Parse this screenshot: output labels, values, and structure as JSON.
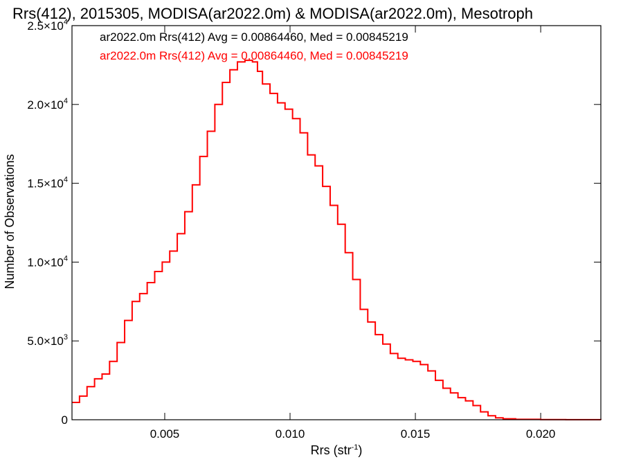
{
  "chart_data": {
    "type": "line",
    "title": "Rrs(412), 2015305, MODISA(ar2022.0m) & MODISA(ar2022.0m), Mesotroph",
    "xlabel": "Rrs (str",
    "xlabel_sup": "-1",
    "xlabel_tail": ")",
    "ylabel": "Number of Observations",
    "xlim": [
      0.0013,
      0.0224
    ],
    "ylim": [
      0,
      25000
    ],
    "x_ticks": [
      {
        "value": 0.005,
        "label": "0.005"
      },
      {
        "value": 0.01,
        "label": "0.010"
      },
      {
        "value": 0.015,
        "label": "0.015"
      },
      {
        "value": 0.02,
        "label": "0.020"
      }
    ],
    "y_ticks": [
      {
        "value": 0,
        "mant": "0",
        "exp": ""
      },
      {
        "value": 5000,
        "mant": "5.0×10",
        "exp": "3"
      },
      {
        "value": 10000,
        "mant": "1.0×10",
        "exp": "4"
      },
      {
        "value": 15000,
        "mant": "1.5×10",
        "exp": "4"
      },
      {
        "value": 20000,
        "mant": "2.0×10",
        "exp": "4"
      },
      {
        "value": 25000,
        "mant": "2.5×10",
        "exp": "4"
      }
    ],
    "grid": false,
    "legend_placement": "top-left",
    "annotations": [
      {
        "text": "ar2022.0m Rrs(412) Avg = 0.00864460, Med = 0.00845219",
        "color": "#000000"
      },
      {
        "text": "ar2022.0m Rrs(412) Avg = 0.00864460, Med = 0.00845219",
        "color": "#ff0000"
      }
    ],
    "series": [
      {
        "color": "#ff0000",
        "step": true,
        "points": [
          [
            0.0013,
            1100
          ],
          [
            0.0016,
            1500
          ],
          [
            0.0019,
            2100
          ],
          [
            0.0022,
            2600
          ],
          [
            0.0025,
            2900
          ],
          [
            0.0028,
            3700
          ],
          [
            0.0031,
            4900
          ],
          [
            0.0034,
            6300
          ],
          [
            0.0037,
            7500
          ],
          [
            0.004,
            8000
          ],
          [
            0.0043,
            8700
          ],
          [
            0.0046,
            9400
          ],
          [
            0.0049,
            10000
          ],
          [
            0.0052,
            10700
          ],
          [
            0.0055,
            11800
          ],
          [
            0.0058,
            13200
          ],
          [
            0.0061,
            14900
          ],
          [
            0.0064,
            16700
          ],
          [
            0.0067,
            18300
          ],
          [
            0.007,
            20000
          ],
          [
            0.0073,
            21400
          ],
          [
            0.0076,
            22200
          ],
          [
            0.0079,
            22700
          ],
          [
            0.0082,
            22800
          ],
          [
            0.0085,
            22700
          ],
          [
            0.0087,
            22100
          ],
          [
            0.0089,
            21300
          ],
          [
            0.0092,
            20700
          ],
          [
            0.0095,
            20100
          ],
          [
            0.0098,
            19700
          ],
          [
            0.0101,
            19100
          ],
          [
            0.0104,
            18200
          ],
          [
            0.0107,
            16800
          ],
          [
            0.011,
            16100
          ],
          [
            0.0113,
            14800
          ],
          [
            0.0116,
            13600
          ],
          [
            0.0119,
            12400
          ],
          [
            0.0122,
            10600
          ],
          [
            0.0125,
            8900
          ],
          [
            0.0128,
            7000
          ],
          [
            0.0131,
            6200
          ],
          [
            0.0134,
            5400
          ],
          [
            0.0137,
            4800
          ],
          [
            0.014,
            4200
          ],
          [
            0.0143,
            3900
          ],
          [
            0.0146,
            3800
          ],
          [
            0.0149,
            3700
          ],
          [
            0.0152,
            3500
          ],
          [
            0.0155,
            3100
          ],
          [
            0.0158,
            2500
          ],
          [
            0.0161,
            2000
          ],
          [
            0.0164,
            1700
          ],
          [
            0.0167,
            1400
          ],
          [
            0.017,
            1200
          ],
          [
            0.0173,
            900
          ],
          [
            0.0176,
            500
          ],
          [
            0.0179,
            250
          ],
          [
            0.0182,
            120
          ],
          [
            0.0185,
            60
          ],
          [
            0.019,
            30
          ],
          [
            0.02,
            10
          ],
          [
            0.021,
            5
          ],
          [
            0.0224,
            0
          ]
        ]
      }
    ]
  }
}
